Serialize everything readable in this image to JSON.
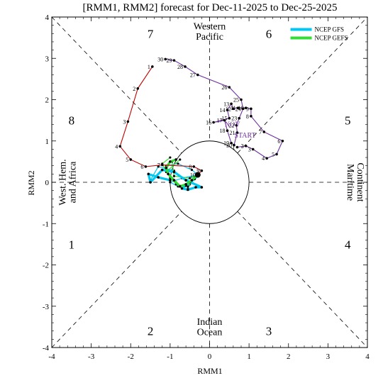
{
  "chart_data": {
    "type": "line",
    "title": "[RMM1, RMM2] forecast for Dec-11-2025 to Dec-25-2025",
    "xlabel": "RMM1",
    "ylabel": "RMM2",
    "xlim": [
      -4,
      4
    ],
    "ylim": [
      -4,
      4
    ],
    "xticks": [
      "-4",
      "-3",
      "-2",
      "-1",
      "0",
      "1",
      "2",
      "3",
      "4"
    ],
    "yticks": [
      "-4",
      "-3",
      "-2",
      "-1",
      "0",
      "1",
      "2",
      "3",
      "4"
    ],
    "grid": false,
    "legend_position": "top-right",
    "phases": [
      {
        "label": "1",
        "x": -3.5,
        "y": -1.5
      },
      {
        "label": "2",
        "x": -1.5,
        "y": -3.6
      },
      {
        "label": "3",
        "x": 1.5,
        "y": -3.6
      },
      {
        "label": "4",
        "x": 3.5,
        "y": -1.5
      },
      {
        "label": "5",
        "x": 3.5,
        "y": 1.5
      },
      {
        "label": "6",
        "x": 1.5,
        "y": 3.6
      },
      {
        "label": "7",
        "x": -1.5,
        "y": 3.6
      },
      {
        "label": "8",
        "x": -3.5,
        "y": 1.5
      }
    ],
    "regions": {
      "top": [
        "Western",
        "Pacific"
      ],
      "bottom": [
        "Indian",
        "Ocean"
      ],
      "left": [
        "West. Hem.",
        "and Africa"
      ],
      "right": [
        "Maritime",
        "Continent"
      ]
    },
    "annotations": [
      {
        "text": "NOV",
        "x": 0.58,
        "y": 1.35,
        "color": "#7030a0"
      },
      {
        "text": "START",
        "x": 0.9,
        "y": 1.08,
        "color": "#7030a0"
      }
    ],
    "observed_series": [
      {
        "name": "",
        "color": "#7030a0",
        "points": [
          {
            "label": "1",
            "x": 0.7,
            "y": 0.85
          },
          {
            "label": "2",
            "x": 0.92,
            "y": 0.88
          },
          {
            "label": "3",
            "x": 1.1,
            "y": 0.8
          },
          {
            "label": "4",
            "x": 1.45,
            "y": 0.58
          },
          {
            "label": "5",
            "x": 1.7,
            "y": 0.68
          },
          {
            "label": "6",
            "x": 1.85,
            "y": 1.0
          },
          {
            "label": "7",
            "x": 1.38,
            "y": 1.22
          },
          {
            "label": "8",
            "x": 1.05,
            "y": 1.6
          },
          {
            "label": "9",
            "x": 1.05,
            "y": 1.78
          },
          {
            "label": "10",
            "x": 0.92,
            "y": 1.8
          },
          {
            "label": "11",
            "x": 0.72,
            "y": 1.8
          },
          {
            "label": "12",
            "x": 0.6,
            "y": 1.78
          },
          {
            "label": "13",
            "x": 0.55,
            "y": 1.9
          },
          {
            "label": "14",
            "x": 0.45,
            "y": 1.75
          },
          {
            "label": "15",
            "x": 0.5,
            "y": 1.55
          },
          {
            "label": "16",
            "x": 0.1,
            "y": 1.45
          },
          {
            "label": "17",
            "x": 0.38,
            "y": 1.5
          },
          {
            "label": "18",
            "x": 0.45,
            "y": 1.25
          },
          {
            "label": "19",
            "x": 0.55,
            "y": 0.95
          },
          {
            "label": "20",
            "x": 0.62,
            "y": 0.9
          },
          {
            "label": "21",
            "x": 0.7,
            "y": 1.2
          },
          {
            "label": "22",
            "x": 0.68,
            "y": 1.38
          },
          {
            "label": "23",
            "x": 0.75,
            "y": 1.55
          },
          {
            "label": "24",
            "x": 0.85,
            "y": 1.78
          },
          {
            "label": "25",
            "x": 0.8,
            "y": 2.0
          },
          {
            "label": "26",
            "x": 0.5,
            "y": 2.3
          },
          {
            "label": "27",
            "x": -0.3,
            "y": 2.6
          },
          {
            "label": "28",
            "x": -0.62,
            "y": 2.8
          },
          {
            "label": "29",
            "x": -0.9,
            "y": 2.95
          },
          {
            "label": "30",
            "x": -1.12,
            "y": 2.98
          }
        ]
      },
      {
        "name": "",
        "color": "#c00000",
        "points": [
          {
            "label": "1",
            "x": -1.45,
            "y": 2.8
          },
          {
            "label": "2",
            "x": -1.82,
            "y": 2.27
          },
          {
            "label": "3",
            "x": -2.07,
            "y": 1.47
          },
          {
            "label": "4",
            "x": -2.27,
            "y": 0.87
          },
          {
            "label": "5",
            "x": -2.0,
            "y": 0.55
          },
          {
            "label": "6",
            "x": -1.62,
            "y": 0.38
          },
          {
            "label": "7",
            "x": -1.2,
            "y": 0.42
          },
          {
            "label": "8",
            "x": -0.4,
            "y": 0.38
          },
          {
            "label": "9",
            "x": -0.2,
            "y": 0.28
          },
          {
            "label": "10",
            "x": -0.3,
            "y": 0.18
          }
        ]
      }
    ],
    "series": [
      {
        "name": "NCEP GFS",
        "color": "#00c8f0",
        "points": [
          {
            "x": -0.3,
            "y": 0.18
          },
          {
            "x": -0.38,
            "y": 0.08
          },
          {
            "x": -0.5,
            "y": 0.0
          },
          {
            "x": -0.6,
            "y": -0.08
          },
          {
            "x": -0.7,
            "y": -0.15
          },
          {
            "x": -0.55,
            "y": -0.18
          },
          {
            "x": -0.35,
            "y": -0.12
          },
          {
            "x": -0.2,
            "y": -0.12
          },
          {
            "x": -0.6,
            "y": 0.05
          },
          {
            "x": -0.9,
            "y": 0.25
          },
          {
            "x": -1.2,
            "y": 0.3
          },
          {
            "x": -1.5,
            "y": 0.0
          },
          {
            "x": -1.55,
            "y": 0.2
          },
          {
            "x": -1.3,
            "y": 0.12
          },
          {
            "x": -1.0,
            "y": 0.05
          }
        ]
      },
      {
        "name": "NCEP GEFS",
        "color": "#33dd33",
        "points": [
          {
            "x": -0.3,
            "y": 0.18
          },
          {
            "x": -0.45,
            "y": 0.05
          },
          {
            "x": -0.6,
            "y": -0.05
          },
          {
            "x": -0.75,
            "y": -0.1
          },
          {
            "x": -0.9,
            "y": 0.05
          },
          {
            "x": -1.05,
            "y": 0.2
          },
          {
            "x": -1.1,
            "y": 0.35
          },
          {
            "x": -1.0,
            "y": 0.5
          },
          {
            "x": -0.85,
            "y": 0.55
          }
        ]
      }
    ],
    "gfs_members": [
      [
        {
          "x": -0.3,
          "y": 0.18
        },
        {
          "x": -0.6,
          "y": 0.05
        },
        {
          "x": -0.9,
          "y": 0.28
        },
        {
          "x": -1.3,
          "y": 0.38
        },
        {
          "x": -1.5,
          "y": 0.05
        }
      ],
      [
        {
          "x": -0.3,
          "y": 0.18
        },
        {
          "x": -0.5,
          "y": -0.05
        },
        {
          "x": -0.55,
          "y": -0.15
        },
        {
          "x": -0.2,
          "y": -0.12
        }
      ],
      [
        {
          "x": -0.3,
          "y": 0.18
        },
        {
          "x": -0.7,
          "y": 0.1
        },
        {
          "x": -1.0,
          "y": 0.0
        },
        {
          "x": -0.8,
          "y": -0.1
        }
      ],
      [
        {
          "x": -0.3,
          "y": 0.18
        },
        {
          "x": -0.45,
          "y": 0.3
        },
        {
          "x": -0.8,
          "y": 0.45
        },
        {
          "x": -1.1,
          "y": 0.4
        }
      ]
    ],
    "gefs_members": [
      [
        {
          "x": -0.3,
          "y": 0.18
        },
        {
          "x": -0.7,
          "y": -0.15
        },
        {
          "x": -1.0,
          "y": 0.1
        },
        {
          "x": -1.2,
          "y": 0.45
        },
        {
          "x": -1.0,
          "y": 0.6
        }
      ],
      [
        {
          "x": -0.3,
          "y": 0.18
        },
        {
          "x": -0.55,
          "y": -0.1
        },
        {
          "x": -0.85,
          "y": -0.05
        },
        {
          "x": -1.1,
          "y": 0.25
        },
        {
          "x": -0.75,
          "y": 0.55
        }
      ],
      [
        {
          "x": -0.3,
          "y": 0.18
        },
        {
          "x": -0.5,
          "y": 0.1
        },
        {
          "x": -0.9,
          "y": 0.15
        },
        {
          "x": -0.95,
          "y": 0.5
        }
      ]
    ]
  }
}
